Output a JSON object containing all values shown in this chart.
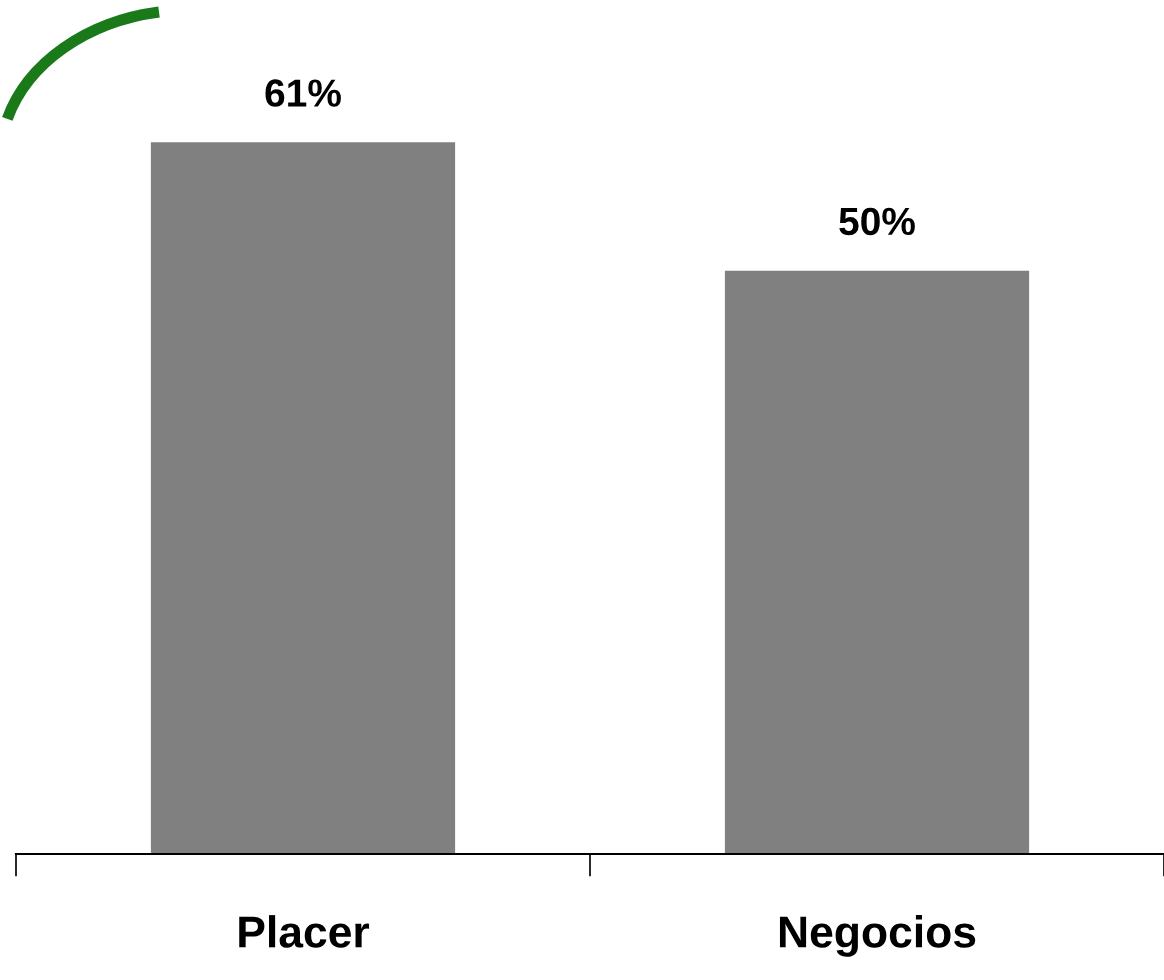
{
  "chart_data": {
    "type": "bar",
    "categories": [
      "Placer",
      "Negocios"
    ],
    "values": [
      61,
      50
    ],
    "value_labels": [
      "61%",
      "50%"
    ],
    "color": "#808080",
    "tick_labels": "x",
    "grid": false,
    "legend": false
  }
}
